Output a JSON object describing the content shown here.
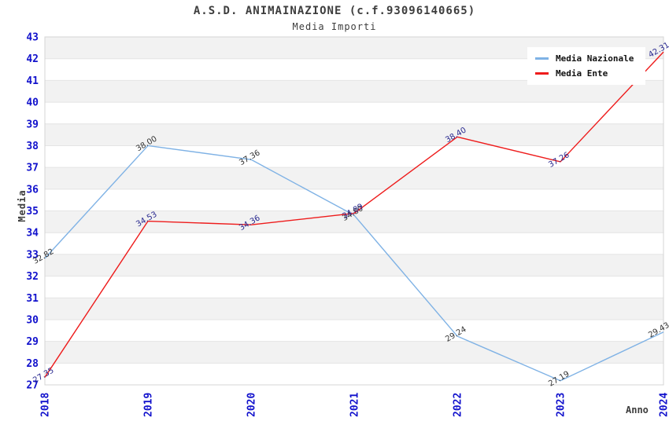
{
  "header": {
    "title": "A.S.D. ANIMAINAZIONE (c.f.93096140665)",
    "subtitle": "Media Importi"
  },
  "chart_data": {
    "type": "line",
    "title": "A.S.D. ANIMAINAZIONE (c.f.93096140665)",
    "subtitle": "Media Importi",
    "xlabel": "Anno",
    "ylabel": "Media",
    "x": [
      2018,
      2019,
      2020,
      2021,
      2022,
      2023,
      2024
    ],
    "series": [
      {
        "name": "Media Nazionale",
        "color": "#7fb2e5",
        "label_color": "#333333",
        "values": [
          32.82,
          38.0,
          37.36,
          34.8,
          29.24,
          27.19,
          29.43
        ]
      },
      {
        "name": "Media Ente",
        "color": "#ee1c1c",
        "label_color": "#28288f",
        "values": [
          27.35,
          34.53,
          34.36,
          34.89,
          38.4,
          37.26,
          42.31
        ]
      }
    ],
    "ylim": [
      27,
      43
    ],
    "ytick_step": 1,
    "grid": true,
    "band_fill": "#f2f2f2",
    "gridline_color": "#e4e4e4",
    "border_color": "#d4d4d4",
    "tick_label_color": "#1111cc",
    "legend_position": "top-right",
    "value_label_decimals": 2
  }
}
